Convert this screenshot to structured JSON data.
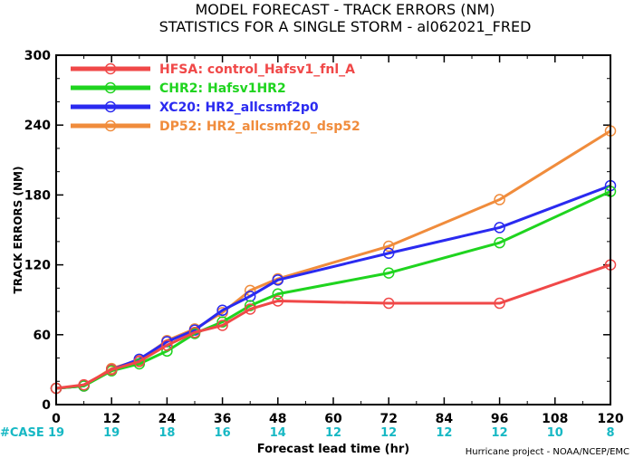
{
  "chart_data": {
    "type": "line",
    "title": "MODEL FORECAST - TRACK ERRORS (NM)",
    "subtitle": "STATISTICS FOR A SINGLE STORM - al062021_FRED",
    "xlabel": "Forecast lead time (hr)",
    "ylabel": "TRACK ERRORS (NM)",
    "xlim": [
      0,
      120
    ],
    "ylim": [
      0,
      300
    ],
    "x_ticks": [
      "0",
      "12",
      "24",
      "36",
      "48",
      "60",
      "72",
      "84",
      "96",
      "108",
      "120"
    ],
    "y_ticks": [
      "0",
      "60",
      "120",
      "180",
      "240",
      "300"
    ],
    "y_tick_values": [
      0,
      60,
      120,
      180,
      240,
      300
    ],
    "legend_position": "top-left",
    "grid": false,
    "case_label": "#CASE",
    "case_counts": [
      {
        "x": 0,
        "n": "19"
      },
      {
        "x": 12,
        "n": "19"
      },
      {
        "x": 24,
        "n": "18"
      },
      {
        "x": 36,
        "n": "16"
      },
      {
        "x": 48,
        "n": "14"
      },
      {
        "x": 60,
        "n": "12"
      },
      {
        "x": 72,
        "n": "12"
      },
      {
        "x": 84,
        "n": "12"
      },
      {
        "x": 96,
        "n": "12"
      },
      {
        "x": 108,
        "n": "10"
      },
      {
        "x": 120,
        "n": "8"
      }
    ],
    "series": [
      {
        "name": "HFSA: control_Hafsv1_fnl_A",
        "color": "#f04848",
        "x": [
          0,
          6,
          12,
          18,
          24,
          30,
          36,
          42,
          48,
          72,
          96,
          120
        ],
        "y": [
          14,
          17,
          30,
          37,
          51,
          62,
          68,
          82,
          89,
          87,
          87,
          120
        ]
      },
      {
        "name": "CHR2: Hafsv1HR2",
        "color": "#1fd41f",
        "x": [
          0,
          6,
          12,
          18,
          24,
          30,
          36,
          42,
          48,
          72,
          96,
          120
        ],
        "y": [
          14,
          16,
          29,
          35,
          46,
          61,
          71,
          85,
          95,
          113,
          139,
          183
        ]
      },
      {
        "name": "XC20: HR2_allcsmf2p0",
        "color": "#2a2af0",
        "x": [
          0,
          6,
          12,
          18,
          24,
          30,
          36,
          42,
          48,
          72,
          96,
          120
        ],
        "y": [
          14,
          16,
          30,
          39,
          54,
          64,
          81,
          93,
          107,
          130,
          152,
          188
        ]
      },
      {
        "name": "DP52: HR2_allcsmf20_dsp52",
        "color": "#f08c3c",
        "x": [
          0,
          6,
          12,
          18,
          24,
          30,
          36,
          42,
          48,
          72,
          96,
          120
        ],
        "y": [
          14,
          16,
          31,
          38,
          55,
          65,
          79,
          98,
          108,
          136,
          176,
          235
        ]
      }
    ]
  },
  "credit": "Hurricane project - NOAA/NCEP/EMC"
}
